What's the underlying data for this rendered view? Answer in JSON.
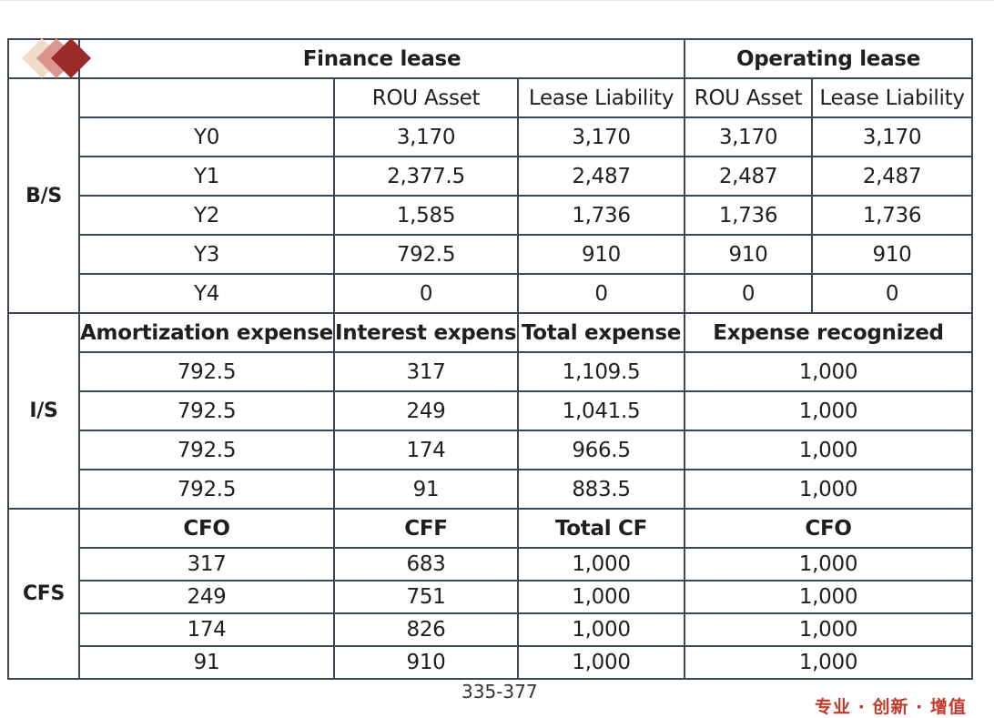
{
  "header": {
    "finance_lease": "Finance lease",
    "operating_lease": "Operating lease"
  },
  "sections": {
    "bs": "B/S",
    "is": "I/S",
    "cfs": "CFS"
  },
  "bs": {
    "columns": [
      "ROU Asset",
      "Lease Liability",
      "ROU Asset",
      "Lease Liability"
    ],
    "rows": [
      [
        "Y0",
        "3,170",
        "3,170",
        "3,170",
        "3,170"
      ],
      [
        "Y1",
        "2,377.5",
        "2,487",
        "2,487",
        "2,487"
      ],
      [
        "Y2",
        "1,585",
        "1,736",
        "1,736",
        "1,736"
      ],
      [
        "Y3",
        "792.5",
        "910",
        "910",
        "910"
      ],
      [
        "Y4",
        "0",
        "0",
        "0",
        "0"
      ]
    ]
  },
  "is": {
    "columns": [
      "Amortization expense",
      "Interest expense",
      "Total expense",
      "Expense recognized"
    ],
    "rows": [
      [
        "792.5",
        "317",
        "1,109.5",
        "1,000"
      ],
      [
        "792.5",
        "249",
        "1,041.5",
        "1,000"
      ],
      [
        "792.5",
        "174",
        "966.5",
        "1,000"
      ],
      [
        "792.5",
        "91",
        "883.5",
        "1,000"
      ]
    ]
  },
  "cfs": {
    "columns": [
      "CFO",
      "CFF",
      "Total CF",
      "CFO"
    ],
    "rows": [
      [
        "317",
        "683",
        "1,000",
        "1,000"
      ],
      [
        "249",
        "751",
        "1,000",
        "1,000"
      ],
      [
        "174",
        "826",
        "1,000",
        "1,000"
      ],
      [
        "91",
        "910",
        "1,000",
        "1,000"
      ]
    ]
  },
  "footer": {
    "page_range": "335-377",
    "slogan": "专业 · 创新 · 增值"
  },
  "colors": {
    "border": "#3d4654",
    "slogan": "#c0392b",
    "deco_dark": "#9b2a2a",
    "deco_mid": "#d98a88",
    "deco_light": "#f0dcc8"
  }
}
